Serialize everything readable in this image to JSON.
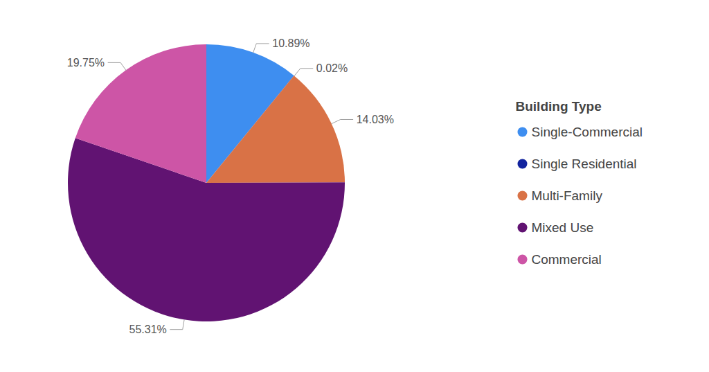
{
  "chart_data": {
    "type": "pie",
    "categories": [
      "Single-Commercial",
      "Single Residential",
      "Multi-Family",
      "Mixed Use",
      "Commercial"
    ],
    "values": [
      10.89,
      0.02,
      14.03,
      55.31,
      19.75
    ],
    "value_labels": [
      "10.89%",
      "0.02%",
      "14.03%",
      "55.31%",
      "19.75%"
    ],
    "colors": [
      "#3e8ef0",
      "#12239e",
      "#d97246",
      "#611372",
      "#cd55a6"
    ],
    "data_labels": true,
    "legend": "right",
    "legend_title": "Building Type"
  }
}
